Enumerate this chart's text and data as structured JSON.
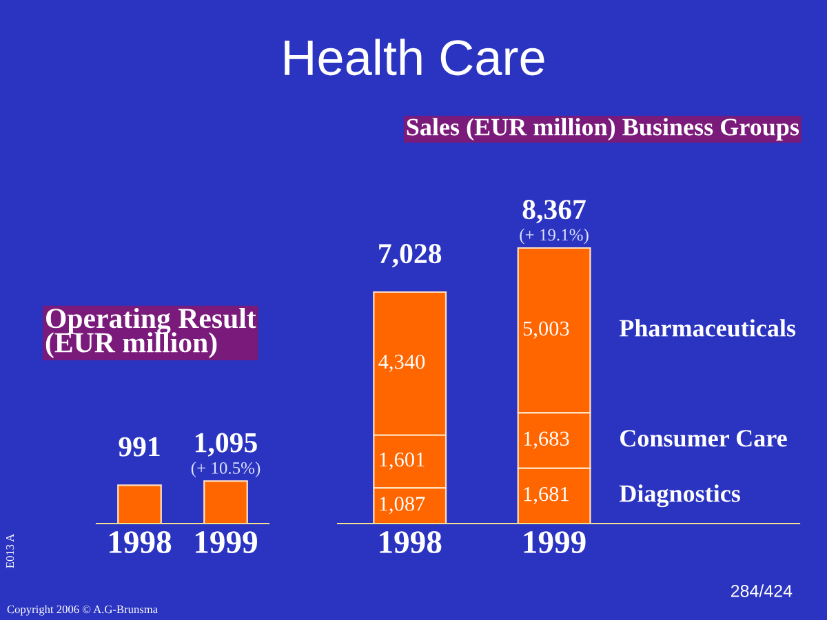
{
  "chart_data": [
    {
      "type": "bar",
      "title": "Operating Result\n(EUR million)",
      "categories": [
        "1998",
        "1999"
      ],
      "series": [
        {
          "color": "#ff6600",
          "values": [
            991,
            1095
          ],
          "value_labels": [
            "991",
            "1,095"
          ]
        }
      ],
      "annotations": [
        {
          "text": "(+ 10.5%)",
          "x": "1999",
          "y": 1095
        },
        "E013 A",
        "Copyright 2006 © A.G-Brunsma"
      ],
      "legend": false,
      "grid": false
    },
    {
      "type": "bar",
      "title": "Health Care",
      "subtitle": "Sales (EUR million) Business Groups",
      "categories": [
        "1998",
        "1999"
      ],
      "stacked": true,
      "series": [
        {
          "name": "Diagnostics",
          "color": "#ff6600",
          "values": [
            1087,
            1681
          ],
          "value_labels": [
            "1,087",
            "1,681"
          ]
        },
        {
          "name": "Consumer Care",
          "color": "#ff6600",
          "values": [
            1601,
            1683
          ],
          "value_labels": [
            "1,601",
            "1,683"
          ]
        },
        {
          "name": "Pharmaceuticals",
          "color": "#ff6600",
          "values": [
            4340,
            5003
          ],
          "value_labels": [
            "4,340",
            "5,003"
          ]
        }
      ],
      "totals": [
        "7,028",
        "8,367"
      ],
      "annotations": [
        {
          "text": "(+ 19.1%)",
          "x": "1999",
          "y": 8367
        },
        "284/424"
      ],
      "legend": false,
      "grid": false
    }
  ]
}
